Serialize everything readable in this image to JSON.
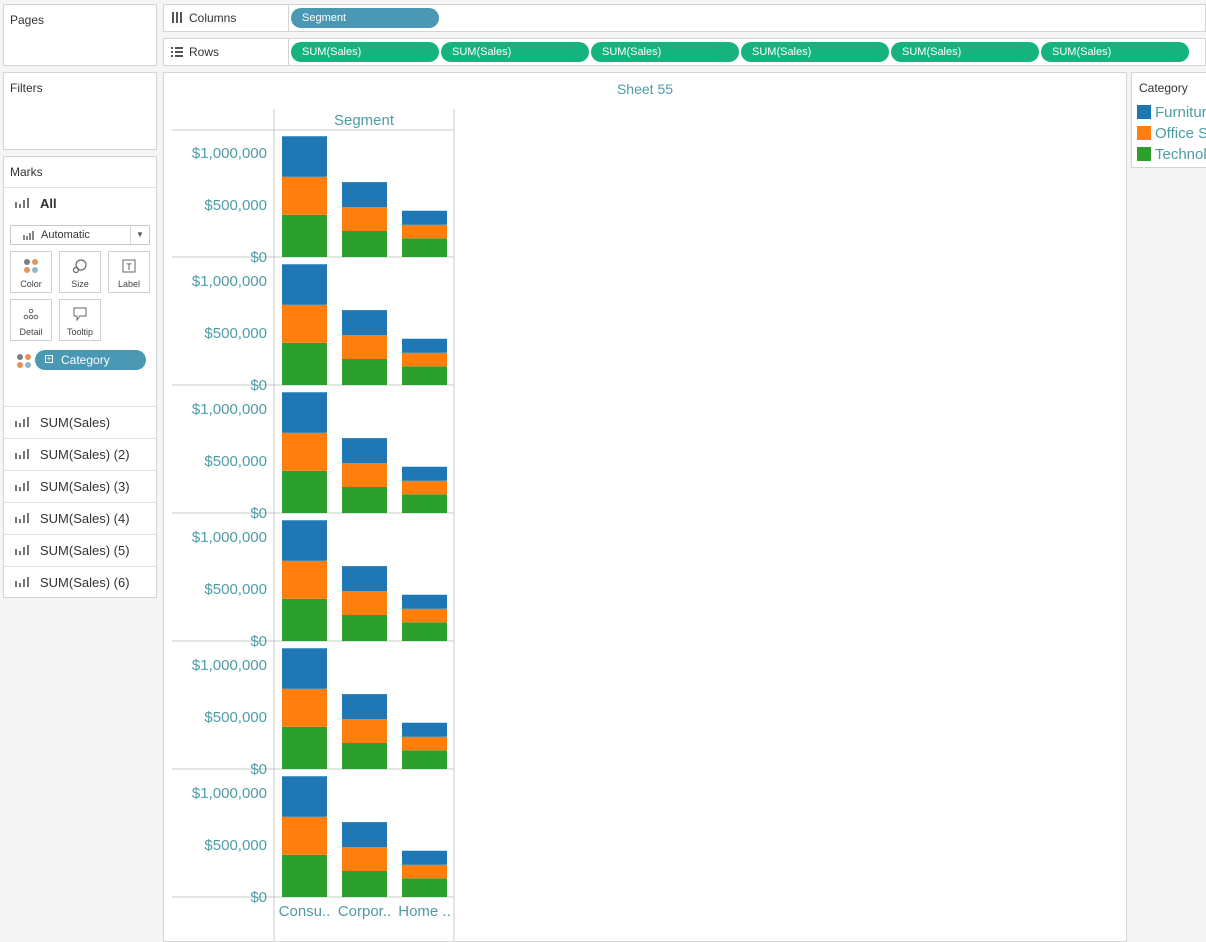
{
  "left_panels": {
    "pages_title": "Pages",
    "filters_title": "Filters",
    "marks_title": "Marks"
  },
  "marks": {
    "all_label": "All",
    "mark_type": "Automatic",
    "buttons": {
      "color": "Color",
      "size": "Size",
      "label": "Label",
      "detail": "Detail",
      "tooltip": "Tooltip"
    },
    "color_field": "Category",
    "measures": [
      "SUM(Sales)",
      "SUM(Sales) (2)",
      "SUM(Sales) (3)",
      "SUM(Sales) (4)",
      "SUM(Sales) (5)",
      "SUM(Sales) (6)"
    ]
  },
  "shelves": {
    "columns_label": "Columns",
    "rows_label": "Rows",
    "columns_pill": "Segment",
    "rows_pills": [
      "SUM(Sales)",
      "SUM(Sales)",
      "SUM(Sales)",
      "SUM(Sales)",
      "SUM(Sales)",
      "SUM(Sales)"
    ]
  },
  "sheet": {
    "title": "Sheet 55",
    "column_header": "Segment"
  },
  "legend": {
    "title": "Category",
    "items": [
      {
        "label": "Furniture",
        "color": "#1f77b4"
      },
      {
        "label": "Office Supplies",
        "color": "#ff7f0e"
      },
      {
        "label": "Technology",
        "color": "#2ca02c"
      }
    ]
  },
  "colors": {
    "accent_text": "#4e9ba5",
    "pill_teal": "#4a98b3",
    "pill_green": "#16b37e"
  },
  "chart_data": {
    "type": "bar",
    "stacked": true,
    "panels": 6,
    "categories": [
      "Consu..",
      "Corpor..",
      "Home .."
    ],
    "series": [
      {
        "name": "Technology",
        "values": [
          406000,
          250000,
          180000
        ]
      },
      {
        "name": "Office Supplies",
        "values": [
          365000,
          230000,
          130000
        ]
      },
      {
        "name": "Furniture",
        "values": [
          390000,
          240000,
          135000
        ]
      }
    ],
    "ylim": [
      0,
      1200000
    ],
    "y_ticks": [
      0,
      500000,
      1000000
    ],
    "y_tick_labels": [
      "$0",
      "$500,000",
      "$1,000,000"
    ],
    "grid": false
  }
}
